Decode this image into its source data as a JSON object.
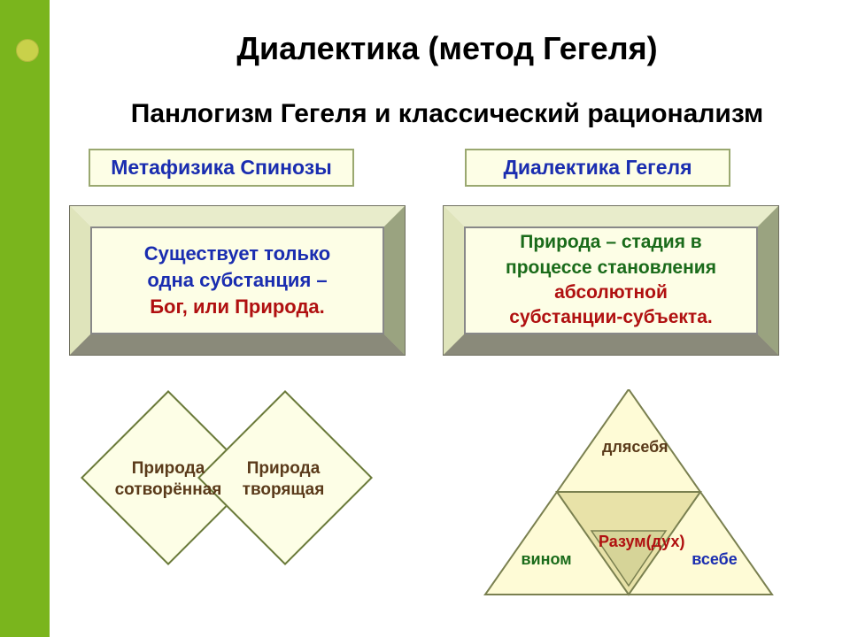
{
  "colors": {
    "sidebar": "#7ab51d",
    "dot": "#c9d14a",
    "box_fill": "#fdfee6",
    "box_border": "#9aa870",
    "bevel_frame": "#cdd3a1",
    "bevel_light": "#e8eccb",
    "bevel_dark": "#8a8a7a",
    "text_blue": "#1a2db0",
    "text_green": "#1a6b1a",
    "text_red": "#b01010",
    "text_brown": "#5a3a1a",
    "triangle_light": "#fefbd6",
    "triangle_mid": "#e8e2a8",
    "triangle_inner": "#d6d498",
    "diamond_fill": "#fdfee6",
    "diamond_border": "#6a7a3a"
  },
  "title": {
    "text": "Диалектика (метод Гегеля)",
    "fontsize": 36
  },
  "subtitle": {
    "text": "Панлогизм Гегеля и классический рационализм",
    "fontsize": 30
  },
  "labels": {
    "left": "Метафизика Спинозы",
    "right": "Диалектика Гегеля",
    "fontsize": 23
  },
  "box_left": {
    "l1": "Существует только",
    "l2": "одна субстанция –",
    "l3": "Бог, или Природа.",
    "c1": "#1a2db0",
    "c2": "#1a2db0",
    "c3": "#b01010",
    "fontsize": 22
  },
  "box_right": {
    "l1": "Природа – стадия в",
    "l2": "процессе становления",
    "l3": "абсолютной",
    "l4": "субстанции-субъекта.",
    "c1": "#1a6b1a",
    "c2": "#1a6b1a",
    "c3": "#b01010",
    "c4": "#b01010",
    "fontsize": 21
  },
  "diamonds": {
    "left_l1": "Природа",
    "left_l2": "сотворённая",
    "right_l1": "Природа",
    "right_l2": "творящая",
    "fontsize": 19,
    "color": "#5a3a1a"
  },
  "triangle": {
    "top": "для\nсебя",
    "left": "в\nином",
    "right": "в\nсебе",
    "center": "Разум\n(дух)",
    "top_color": "#5a3a1a",
    "left_color": "#1a6b1a",
    "right_color": "#1a2db0",
    "center_color": "#b01010",
    "fontsize": 18
  }
}
